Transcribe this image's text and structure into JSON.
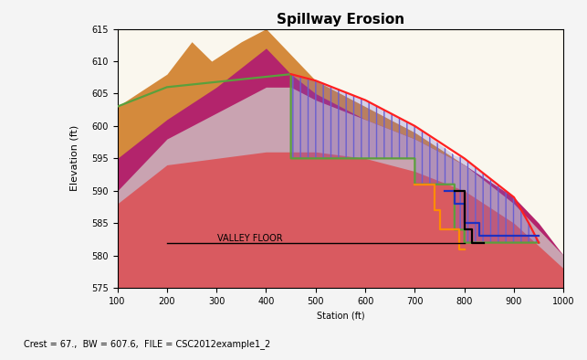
{
  "chart_data": {
    "type": "area",
    "title": "Spillway Erosion",
    "x_label": "Station (ft)",
    "y_label": "Elevation (ft)",
    "xlim": [
      100,
      1000
    ],
    "xticks": [
      100,
      200,
      300,
      400,
      500,
      600,
      700,
      800,
      900,
      1000
    ],
    "ylim": [
      575,
      615
    ],
    "yticks": [
      575,
      580,
      585,
      590,
      595,
      600,
      605,
      610,
      615
    ],
    "grid": false,
    "series": [
      {
        "type": "area",
        "color": "#d48a3c",
        "x": [
          100,
          200,
          250,
          290,
          350,
          400,
          450,
          500,
          600,
          700,
          800,
          900,
          950,
          1000
        ],
        "values": [
          603,
          608,
          613,
          610,
          613,
          615,
          611,
          607,
          603,
          599,
          594,
          588,
          584,
          579
        ]
      },
      {
        "type": "area",
        "color": "#b3246c",
        "x": [
          100,
          200,
          300,
          400,
          450,
          500,
          600,
          700,
          800,
          900,
          950,
          1000
        ],
        "values": [
          595,
          601,
          606,
          612,
          608,
          605,
          601,
          598,
          594,
          589,
          585,
          580
        ]
      },
      {
        "type": "area",
        "color": "#c9a3b1",
        "x": [
          100,
          200,
          300,
          400,
          450,
          500,
          600,
          700,
          800,
          900,
          1000
        ],
        "values": [
          590,
          598,
          602,
          606,
          606,
          604,
          601,
          598,
          594,
          588,
          580
        ]
      },
      {
        "type": "area",
        "color": "#d95a60",
        "x": [
          100,
          200,
          300,
          400,
          500,
          600,
          700,
          800,
          900,
          1000
        ],
        "values": [
          588,
          594,
          595,
          596,
          596,
          595,
          593,
          590,
          585,
          578
        ]
      },
      {
        "type": "band",
        "color": "#6a5fd0",
        "x": [
          450,
          500,
          600,
          700,
          700,
          780,
          780,
          800,
          800,
          900,
          930,
          950
        ],
        "values": [
          608,
          607,
          604,
          600,
          600,
          595.5,
          595.5,
          595,
          595,
          589,
          585,
          582
        ],
        "lower": [
          595,
          595,
          595,
          595,
          591,
          591,
          584,
          584,
          582,
          582,
          582,
          582
        ]
      },
      {
        "type": "line",
        "color": "#5aa03c",
        "x": [
          100,
          200,
          450,
          450,
          700,
          700,
          780,
          780,
          800,
          800,
          950
        ],
        "values": [
          603,
          606,
          608,
          595,
          595,
          591,
          591,
          584,
          584,
          582,
          582
        ]
      },
      {
        "type": "line",
        "color": "#ff2020",
        "x": [
          450,
          500,
          600,
          700,
          800,
          900,
          930,
          950
        ],
        "values": [
          608,
          607,
          604,
          600,
          595,
          589,
          585,
          582
        ]
      },
      {
        "type": "line",
        "color": "#ff8c00",
        "x": [
          700,
          740,
          740,
          750,
          750,
          790,
          790,
          800
        ],
        "values": [
          591,
          591,
          587,
          587,
          584,
          584,
          581,
          581
        ]
      },
      {
        "type": "line",
        "color": "#2030c0",
        "x": [
          760,
          780,
          780,
          800,
          800,
          830,
          830,
          950
        ],
        "values": [
          590,
          590,
          588,
          588,
          585,
          585,
          583,
          583
        ]
      },
      {
        "type": "line",
        "color": "#000000",
        "x": [
          780,
          800,
          800,
          815,
          815,
          830,
          830,
          840
        ],
        "values": [
          590,
          590,
          584,
          584,
          582,
          582,
          582,
          582
        ]
      }
    ],
    "annotations": [
      {
        "text": "VALLEY FLOOR",
        "x": [
          200,
          800
        ],
        "y": 582,
        "color": "#000000"
      }
    ],
    "footer": "Crest = 67.,  BW = 607.6,  FILE = CSC2012example1_2"
  }
}
